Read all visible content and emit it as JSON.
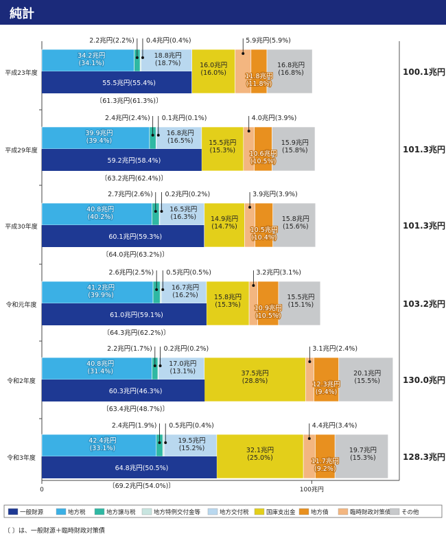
{
  "header": {
    "title": "純計"
  },
  "chart_data": {
    "type": "bar",
    "stacked": true,
    "max_value": 150,
    "x_ticks": [
      {
        "value": 0,
        "label": "0"
      },
      {
        "value": 100,
        "label": "100兆円"
      }
    ],
    "segment_colors": [
      "#3bb0e5",
      "#2fb8a3",
      "#b9d8ef",
      "#e3cf1a",
      "#e8901f",
      "#f3b680",
      "#c7c9cb"
    ],
    "base_color": "#1e3993",
    "years": [
      {
        "label": "平成23年度",
        "total": "100.1兆円",
        "segments": [
          34.2,
          2.2,
          18.8,
          16.0,
          11.8,
          0.4,
          16.8
        ],
        "general": 55.5,
        "general_label": "55.5兆円(55.4%)",
        "bracket": "〔61.3兆円(61.3%)〕",
        "labels": {
          "tax": "34.2兆円\n(34.1%)",
          "yojo": "2.2兆円(2.2%)",
          "tokubetsu": "0.4兆円(0.4%)",
          "kofu": "18.8兆円\n(18.7%)",
          "kokko": "16.0兆円\n(16.0%)",
          "chihosai": "11.8兆円\n(11.8%)",
          "rinji": "5.9兆円(5.9%)",
          "other": "16.8兆円\n(16.8%)"
        }
      },
      {
        "label": "平成29年度",
        "total": "101.3兆円",
        "segments": [
          39.9,
          2.4,
          16.8,
          15.5,
          10.6,
          0.1,
          15.9
        ],
        "general": 59.2,
        "general_label": "59.2兆円(58.4%)",
        "bracket": "〔63.2兆円(62.4%)〕",
        "labels": {
          "tax": "39.9兆円\n(39.4%)",
          "yojo": "2.4兆円(2.4%)",
          "tokubetsu": "0.1兆円(0.1%)",
          "kofu": "16.8兆円\n(16.5%)",
          "kokko": "15.5兆円\n(15.3%)",
          "chihosai": "10.6兆円\n(10.5%)",
          "rinji": "4.0兆円(3.9%)",
          "other": "15.9兆円\n(15.8%)"
        }
      },
      {
        "label": "平成30年度",
        "total": "101.3兆円",
        "segments": [
          40.8,
          2.7,
          16.5,
          14.9,
          10.5,
          0.2,
          15.8
        ],
        "general": 60.1,
        "general_label": "60.1兆円(59.3%)",
        "bracket": "〔64.0兆円(63.2%)〕",
        "labels": {
          "tax": "40.8兆円\n(40.2%)",
          "yojo": "2.7兆円(2.6%)",
          "tokubetsu": "0.2兆円(0.2%)",
          "kofu": "16.5兆円\n(16.3%)",
          "kokko": "14.9兆円\n(14.7%)",
          "chihosai": "10.5兆円\n(10.4%)",
          "rinji": "3.9兆円(3.9%)",
          "other": "15.8兆円\n(15.6%)"
        }
      },
      {
        "label": "令和元年度",
        "total": "103.2兆円",
        "segments": [
          41.2,
          2.6,
          16.7,
          15.8,
          10.9,
          0.5,
          15.5
        ],
        "general": 61.0,
        "general_label": "61.0兆円(59.1%)",
        "bracket": "〔64.3兆円(62.2%)〕",
        "labels": {
          "tax": "41.2兆円\n(39.9%)",
          "yojo": "2.6兆円(2.5%)",
          "tokubetsu": "0.5兆円(0.5%)",
          "kofu": "16.7兆円\n(16.2%)",
          "kokko": "15.8兆円\n(15.3%)",
          "chihosai": "10.9兆円\n(10.5%)",
          "rinji": "3.2兆円(3.1%)",
          "other": "15.5兆円\n(15.1%)"
        }
      },
      {
        "label": "令和2年度",
        "total": "130.0兆円",
        "segments": [
          40.8,
          2.2,
          17.0,
          37.5,
          12.3,
          0.2,
          20.1
        ],
        "general": 60.3,
        "general_label": "60.3兆円(46.3%)",
        "bracket": "〔63.4兆円(48.7%)〕",
        "labels": {
          "tax": "40.8兆円\n(31.4%)",
          "yojo": "2.2兆円(1.7%)",
          "tokubetsu": "0.2兆円(0.2%)",
          "kofu": "17.0兆円\n(13.1%)",
          "kokko": "37.5兆円\n(28.8%)",
          "chihosai": "12.3兆円\n(9.4%)",
          "rinji": "3.1兆円(2.4%)",
          "other": "20.1兆円\n(15.5%)"
        }
      },
      {
        "label": "令和3年度",
        "total": "128.3兆円",
        "segments": [
          42.4,
          2.4,
          19.5,
          32.1,
          11.7,
          0.5,
          19.7
        ],
        "general": 64.8,
        "general_label": "64.8兆円(50.5%)",
        "bracket": "〔69.2兆円(54.0%)〕",
        "labels": {
          "tax": "42.4兆円\n(33.1%)",
          "yojo": "2.4兆円(1.9%)",
          "tokubetsu": "0.5兆円(0.4%)",
          "kofu": "19.5兆円\n(15.2%)",
          "kokko": "32.1兆円\n(25.0%)",
          "chihosai": "11.7兆円\n(9.2%)",
          "rinji": "4.4兆円(3.4%)",
          "other": "19.7兆円\n(15.3%)"
        }
      }
    ],
    "legend": [
      {
        "name": "一般財源",
        "color": "#1e3993"
      },
      {
        "name": "地方税",
        "color": "#3bb0e5"
      },
      {
        "name": "地方譲与税",
        "color": "#2fb8a3"
      },
      {
        "name": "地方特例交付金等",
        "color": "#c8e5e0"
      },
      {
        "name": "地方交付税",
        "color": "#b9d8ef"
      },
      {
        "name": "国庫支出金",
        "color": "#e3cf1a"
      },
      {
        "name": "地方債",
        "color": "#e8901f"
      },
      {
        "name": "臨時財政対策債",
        "color": "#f3b680"
      },
      {
        "name": "その他",
        "color": "#c7c9cb"
      }
    ]
  },
  "footnote": "〔 〕は、一般財源＋臨時財政対策債"
}
